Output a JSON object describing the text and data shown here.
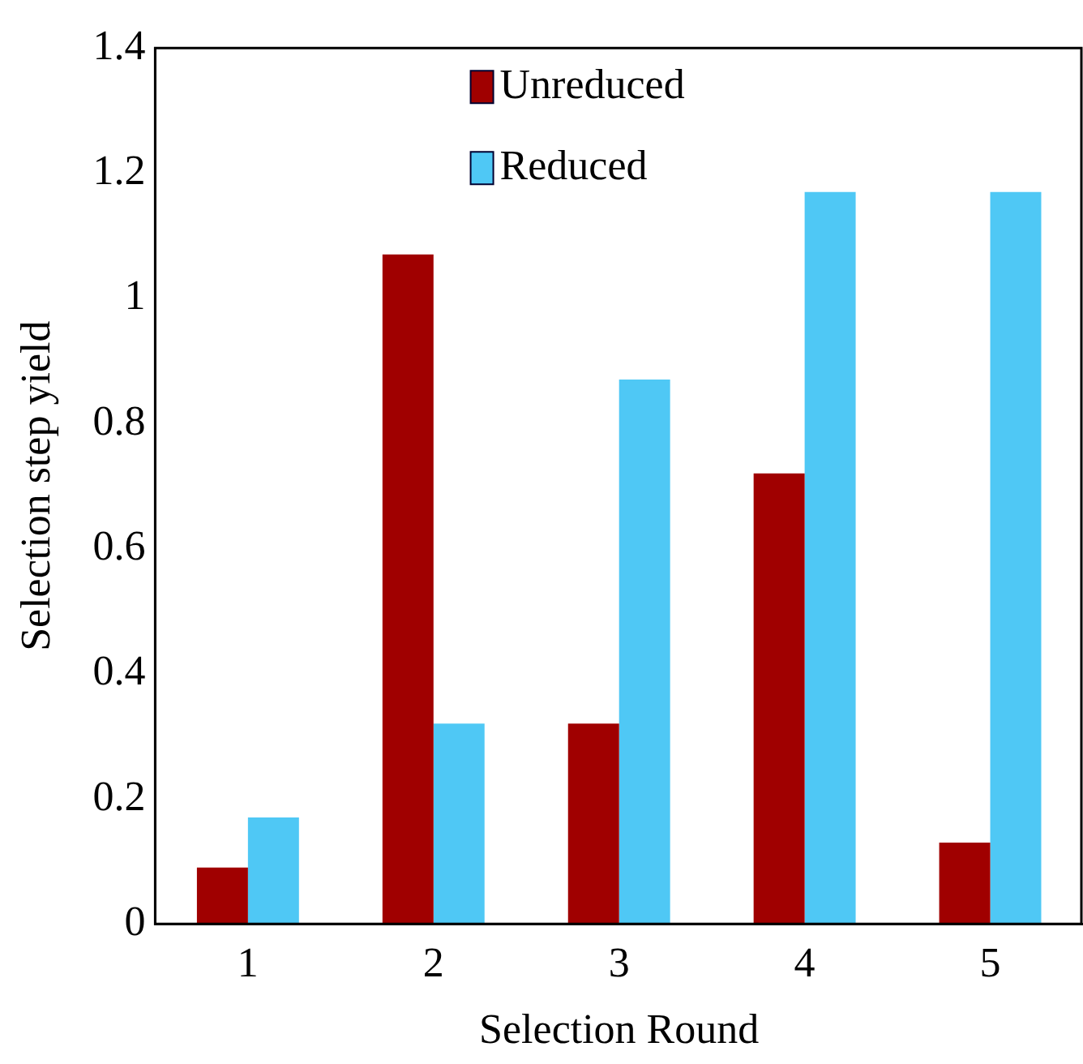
{
  "chart_data": {
    "type": "bar",
    "xlabel": "Selection Round",
    "ylabel": "Selection step yield",
    "categories": [
      "1",
      "2",
      "3",
      "4",
      "5"
    ],
    "series": [
      {
        "name": "Unreduced",
        "color": "#a00000",
        "values": [
          0.09,
          1.07,
          0.32,
          0.72,
          0.13
        ]
      },
      {
        "name": "Reduced",
        "color": "#4fc8f5",
        "values": [
          0.17,
          0.32,
          0.87,
          1.17,
          1.17
        ]
      }
    ],
    "ylim": [
      0,
      1.4
    ],
    "yticks": [
      0,
      0.2,
      0.4,
      0.6,
      0.8,
      1,
      1.2,
      1.4
    ],
    "grid": false,
    "legend": "top"
  }
}
